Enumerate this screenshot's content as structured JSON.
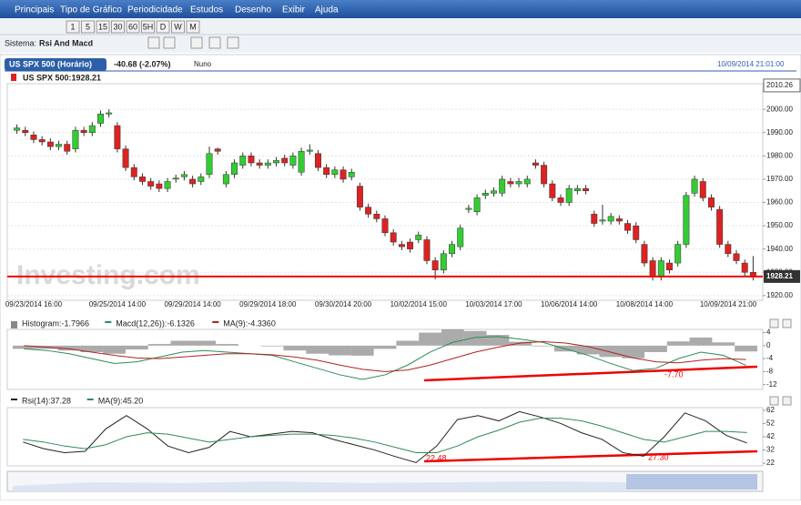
{
  "menu": [
    "Principais",
    "Tipo de Gráfico",
    "Periodicidade",
    "Estudos",
    "Desenho",
    "Exibir",
    "Ajuda"
  ],
  "toolbar": {
    "periods": [
      "1",
      "5",
      "15",
      "30",
      "60",
      "5H",
      "D",
      "W",
      "M"
    ]
  },
  "system": {
    "label": "Sistema:",
    "name": "Rsi And Macd"
  },
  "header": {
    "instrument": "US SPX 500 (Horário)",
    "change": "-40.68 (-2.07%)",
    "user": "Nuno",
    "timestamp": "10/09/2014 21:01:00"
  },
  "watermark": "Investing.com",
  "chart_data": [
    {
      "type": "candlestick",
      "name": "US SPX 500:1928.21",
      "up_color": "#33cc33",
      "down_color": "#dd2222",
      "last_price": 1928.21,
      "high_marker": 2010.26,
      "categories": [
        null,
        null,
        "09/23/2014 16:00",
        null,
        null,
        null,
        null,
        null,
        null,
        null,
        null,
        null,
        "09/25/2014 14:00",
        null,
        null,
        null,
        null,
        null,
        null,
        null,
        null,
        "09/29/2014 14:00",
        null,
        null,
        null,
        null,
        null,
        null,
        null,
        null,
        "09/29/2014 18:00",
        null,
        null,
        null,
        null,
        null,
        null,
        null,
        null,
        "09/30/2014 20:00",
        null,
        null,
        null,
        null,
        null,
        null,
        null,
        null,
        "10/02/2014 15:00",
        null,
        null,
        null,
        null,
        null,
        null,
        null,
        null,
        "10/03/2014 17:00",
        null,
        null,
        null,
        null,
        null,
        null,
        null,
        null,
        "10/06/2014 14:00",
        null,
        null,
        null,
        null,
        null,
        null,
        null,
        null,
        "10/08/2014 14:00",
        null,
        null,
        null,
        null,
        null,
        null,
        null,
        null,
        null,
        null,
        null,
        null,
        "10/09/2014 21:00"
      ],
      "open": [
        1991,
        1991,
        1989,
        1987,
        1986,
        1984,
        1985,
        1983,
        1991,
        1990,
        1994,
        1998,
        1993,
        1983,
        1975,
        1971,
        1969,
        1968,
        1966,
        1970,
        1971,
        1970,
        1969,
        1972,
        1983,
        1968,
        1972,
        1976,
        1980,
        1977,
        1976,
        1977,
        1979,
        1976,
        1973,
        1982,
        1981,
        1975,
        1972,
        1974,
        1971,
        1967,
        1958,
        1955,
        1953,
        1947,
        1942,
        1943,
        1944,
        1944,
        1935,
        1931,
        1938,
        1941,
        1957,
        1956,
        1963,
        1964,
        1964,
        1969,
        1968,
        1968,
        1977,
        1976,
        1968,
        1962,
        1960,
        1965,
        1966,
        1955,
        1952,
        1952,
        1953,
        1951,
        1950,
        1942,
        1935,
        1928,
        1934,
        1934,
        1942,
        1964,
        1969,
        1962,
        1957,
        1942,
        1938,
        1934,
        1930
      ],
      "close": [
        1992,
        1990,
        1987,
        1986,
        1984,
        1985,
        1982,
        1991,
        1990,
        1993,
        1998,
        1998.5,
        1983,
        1975,
        1971,
        1969,
        1967,
        1966,
        1969,
        1970.5,
        1972,
        1968,
        1971,
        1981,
        1982,
        1972,
        1977,
        1980,
        1977,
        1976,
        1977,
        1978,
        1977,
        1980,
        1982,
        1982.5,
        1975,
        1972,
        1974,
        1970,
        1973,
        1958,
        1955,
        1953,
        1947,
        1943,
        1941,
        1940,
        1946,
        1935,
        1931,
        1938,
        1942,
        1949,
        1957.5,
        1962,
        1964,
        1965,
        1970,
        1968,
        1969,
        1970,
        1976,
        1968,
        1962,
        1960,
        1966,
        1966,
        1965,
        1951,
        1952.5,
        1954,
        1952,
        1948,
        1944,
        1934,
        1928,
        1935,
        1931,
        1942,
        1963,
        1970,
        1962,
        1958,
        1942,
        1938,
        1935,
        1930,
        1928.21
      ],
      "high": [
        1993.5,
        1992.5,
        1990.5,
        1988.5,
        1987.5,
        1986.5,
        1986.5,
        1992.5,
        1992.5,
        1994.5,
        1999.5,
        2000,
        1994.5,
        1984.5,
        1976.5,
        1972.5,
        1970.5,
        1969.5,
        1970.5,
        1972,
        1973.5,
        1971.5,
        1972.5,
        1984,
        1983.5,
        1973.5,
        1978.5,
        1981.5,
        1981.5,
        1978.5,
        1978.5,
        1979.5,
        1980.5,
        1981.5,
        1983.5,
        1985,
        1982.5,
        1976.5,
        1975.5,
        1975.5,
        1974.5,
        1968.5,
        1959.5,
        1956.5,
        1954.5,
        1948.5,
        1943.5,
        1944.5,
        1947.5,
        1945.5,
        1936.5,
        1939.5,
        1943.5,
        1950.5,
        1959,
        1963.5,
        1965.5,
        1966.5,
        1971.5,
        1970.5,
        1970.5,
        1971.5,
        1978.5,
        1977.5,
        1969.5,
        1963.5,
        1967.5,
        1967.5,
        1967.5,
        1956.5,
        1959,
        1955.5,
        1954.5,
        1952.5,
        1951.5,
        1943.5,
        1936.5,
        1936.5,
        1935.5,
        1943.5,
        1964.5,
        1971.5,
        1970.5,
        1963.5,
        1958.5,
        1943.5,
        1939.5,
        1935.5,
        1937
      ],
      "low": [
        1989.5,
        1988.5,
        1985.5,
        1984.5,
        1982.5,
        1982.5,
        1980.5,
        1981.5,
        1988.5,
        1988.5,
        1992.5,
        1996.5,
        1981.5,
        1973.5,
        1969.5,
        1967.5,
        1965.5,
        1964.5,
        1964.5,
        1968.5,
        1969.5,
        1966.5,
        1967.5,
        1970.5,
        1980.5,
        1966.5,
        1970.5,
        1974.5,
        1975.5,
        1974.5,
        1974.5,
        1975.5,
        1975.5,
        1974.5,
        1971.5,
        1980.5,
        1973.5,
        1970.5,
        1970.5,
        1968.5,
        1969.5,
        1956.5,
        1953.5,
        1951.5,
        1945.5,
        1941.5,
        1939.5,
        1938.5,
        1942.5,
        1933.5,
        1927,
        1929.5,
        1936.5,
        1939.5,
        1955.5,
        1954.5,
        1961.5,
        1962.5,
        1962.5,
        1966.5,
        1966.5,
        1966.5,
        1974.5,
        1966.5,
        1960.5,
        1958.5,
        1958.5,
        1963.5,
        1963.5,
        1949.5,
        1950.5,
        1950.5,
        1950.5,
        1946.5,
        1942.5,
        1932.5,
        1926.5,
        1926.5,
        1929.5,
        1932.5,
        1940.5,
        1962.5,
        1960.5,
        1956.5,
        1940.5,
        1936.5,
        1933.5,
        1928.5,
        1926.5
      ],
      "ylim": [
        1918,
        2011
      ],
      "yticks": [
        {
          "value": 1920,
          "label": "1920.00"
        },
        {
          "value": 1930,
          "label": "1930.00"
        },
        {
          "value": 1940,
          "label": "1940.00"
        },
        {
          "value": 1950,
          "label": "1950.00"
        },
        {
          "value": 1960,
          "label": "1960.00"
        },
        {
          "value": 1970,
          "label": "1970.00"
        },
        {
          "value": 1980,
          "label": "1980.00"
        },
        {
          "value": 1990,
          "label": "1990.00"
        },
        {
          "value": 2000,
          "label": "2000.00"
        }
      ],
      "grid": true
    },
    {
      "type": "line",
      "annotations": [
        "-7.70"
      ],
      "series": [
        {
          "name": "Histogram:-1.7966",
          "color": "#888888",
          "style": "histogram",
          "values": [
            -1,
            -1,
            -1.5,
            -2,
            -2.5,
            -1.2,
            0.5,
            1.5,
            1.5,
            0.5,
            0,
            -0.2,
            -1.5,
            -2.5,
            -3,
            -3.1,
            -1,
            1.5,
            4,
            5,
            4.5,
            3.3,
            1.2,
            -0.2,
            -1.8,
            -2.7,
            -3.5,
            -3.9,
            -2,
            1.3,
            2.5,
            1,
            -1.8
          ]
        },
        {
          "name": "Macd(12,26)):-6.1326",
          "color": "#2e8b57",
          "values": [
            -1,
            -1.5,
            -2.5,
            -4,
            -5.5,
            -5,
            -3.5,
            -2,
            -1.5,
            -2,
            -2.5,
            -3,
            -5,
            -7,
            -9,
            -10.4,
            -9,
            -6,
            -2,
            1,
            2.5,
            2.8,
            2,
            1,
            -1,
            -3,
            -5.5,
            -7.7,
            -7,
            -4,
            -2,
            -3,
            -6.1
          ]
        },
        {
          "name": "MA(9):-4.3360",
          "color": "#b22222",
          "values": [
            0,
            -0.5,
            -1,
            -2,
            -3,
            -3.8,
            -4,
            -3.5,
            -3,
            -2.5,
            -2.5,
            -2.8,
            -3.5,
            -4.5,
            -6,
            -7.3,
            -8,
            -7.5,
            -6,
            -4,
            -2,
            -0.5,
            0.8,
            1.2,
            0.8,
            -0.3,
            -2,
            -3.8,
            -5,
            -5.3,
            -4.5,
            -4,
            -4.3
          ]
        }
      ],
      "ylim": [
        -13.5,
        5
      ],
      "yticks": [
        4,
        0,
        -4,
        -8,
        -12
      ]
    },
    {
      "type": "line",
      "annotations": [
        "22.48",
        "27.30"
      ],
      "series": [
        {
          "name": "Rsi(14):37.28",
          "color": "#222222",
          "values": [
            38,
            33,
            30,
            31,
            48,
            58,
            48,
            35,
            30,
            34,
            46,
            42,
            44,
            46,
            45,
            40,
            36,
            32,
            27,
            22.5,
            35,
            55,
            58,
            54,
            61,
            57,
            52,
            45,
            40,
            30,
            27.3,
            42,
            60,
            54,
            43,
            37.3
          ]
        },
        {
          "name": "MA(9):45.20",
          "color": "#2e8b57",
          "values": [
            40,
            38,
            35,
            33,
            36,
            42,
            45,
            44,
            41,
            38,
            40,
            42,
            43,
            44,
            44,
            43,
            41,
            38,
            34,
            30,
            30,
            35,
            42,
            47,
            53,
            56,
            56,
            54,
            50,
            45,
            40,
            38,
            42,
            46,
            46,
            45.2
          ]
        }
      ],
      "ylim": [
        20,
        64
      ],
      "yticks": [
        62,
        52,
        42,
        32,
        22
      ]
    }
  ]
}
